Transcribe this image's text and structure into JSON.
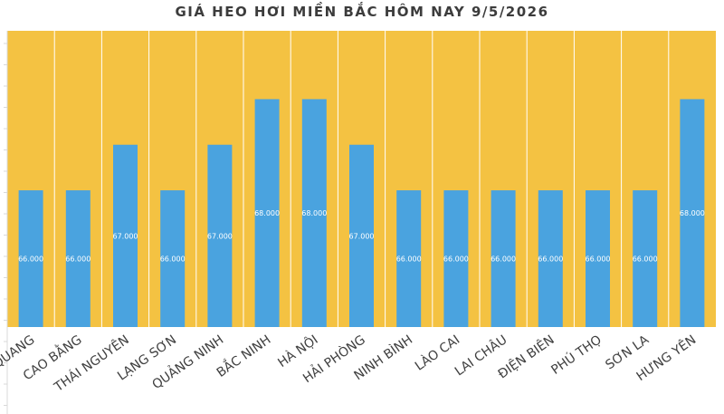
{
  "chart_data": {
    "type": "bar",
    "title": "GIÁ HEO HƠI MIỀN BẮC HÔM NAY 9/5/2026",
    "categories": [
      "TUYÊN QUANG",
      "CAO BẰNG",
      "THÁI NGUYÊN",
      "LẠNG SƠN",
      "QUẢNG NINH",
      "BẮC NINH",
      "HÀ NỘI",
      "HẢI PHÒNG",
      "NINH BÌNH",
      "LÀO CAI",
      "LAI CHÂU",
      "ĐIỆN BIÊN",
      "PHÚ THỌ",
      "SƠN LA",
      "HƯNG YÊN"
    ],
    "values": [
      66000,
      66000,
      67000,
      66000,
      67000,
      68000,
      68000,
      67000,
      66000,
      66000,
      66000,
      66000,
      66000,
      66000,
      68000
    ],
    "data_labels": [
      "66.000",
      "66.000",
      "67.000",
      "66.000",
      "67.000",
      "68.000",
      "68.000",
      "67.000",
      "66.000",
      "66.000",
      "66.000",
      "66.000",
      "66.000",
      "66.000",
      "68.000"
    ],
    "ylim": [
      63000,
      69500
    ],
    "xlabel": "",
    "ylabel": "",
    "grid": true,
    "colors": {
      "plot_background": "#f4c242",
      "bar": "#4aa3df",
      "grid": "#ffffff",
      "data_label": "#ffffff"
    }
  }
}
